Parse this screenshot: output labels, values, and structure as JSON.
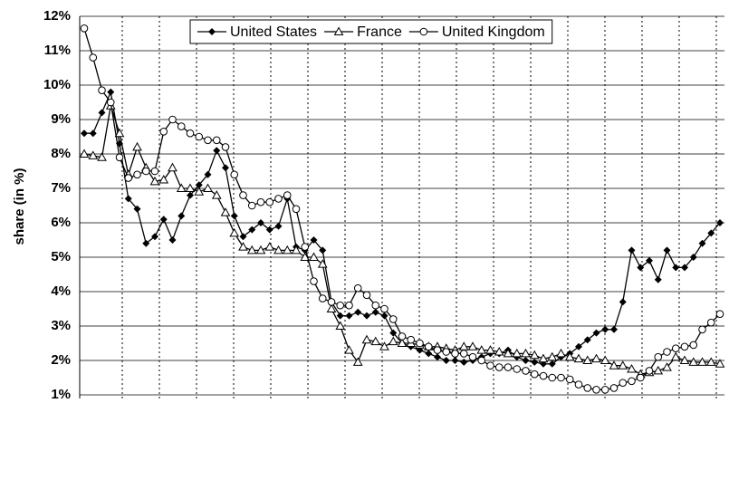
{
  "chart_data": {
    "type": "line",
    "y_label": "share (in %)",
    "ylim": [
      1,
      12
    ],
    "yticks": [
      {
        "value": 1,
        "label": "1%"
      },
      {
        "value": 2,
        "label": "2%"
      },
      {
        "value": 3,
        "label": "3%"
      },
      {
        "value": 4,
        "label": "4%"
      },
      {
        "value": 5,
        "label": "5%"
      },
      {
        "value": 6,
        "label": "6%"
      },
      {
        "value": 7,
        "label": "7%"
      },
      {
        "value": 8,
        "label": "8%"
      },
      {
        "value": 9,
        "label": "9%"
      },
      {
        "value": 10,
        "label": "10%"
      },
      {
        "value": 11,
        "label": "11%"
      },
      {
        "value": 12,
        "label": "12%"
      }
    ],
    "grid": true,
    "legend": "top",
    "series": [
      {
        "name": "United States",
        "color": "#000000",
        "marker": "diamond",
        "values": [
          8.6,
          8.6,
          9.2,
          9.8,
          8.3,
          6.7,
          6.4,
          5.4,
          5.6,
          6.1,
          5.5,
          6.2,
          6.8,
          7.1,
          7.4,
          8.1,
          7.6,
          6.2,
          5.6,
          5.8,
          6.0,
          5.8,
          5.9,
          6.7,
          5.3,
          5.2,
          5.5,
          5.2,
          3.7,
          3.3,
          3.3,
          3.4,
          3.3,
          3.4,
          3.3,
          2.8,
          2.5,
          2.4,
          2.3,
          2.2,
          2.1,
          2.0,
          2.0,
          1.95,
          2.0,
          2.1,
          2.2,
          2.2,
          2.3,
          2.1,
          2.0,
          1.95,
          1.9,
          1.9,
          2.1,
          2.2,
          2.4,
          2.6,
          2.8,
          2.9,
          2.9,
          3.7,
          5.2,
          4.7,
          4.9,
          4.35,
          5.2,
          4.7,
          4.7,
          5.0,
          5.4,
          5.7,
          6.0
        ]
      },
      {
        "name": "France",
        "color": "#000000",
        "marker": "triangle",
        "values": [
          8.0,
          7.95,
          7.9,
          9.4,
          8.6,
          7.4,
          8.2,
          7.6,
          7.2,
          7.25,
          7.6,
          7.0,
          7.0,
          6.9,
          7.0,
          6.8,
          6.3,
          5.7,
          5.3,
          5.2,
          5.2,
          5.3,
          5.2,
          5.2,
          5.2,
          5.0,
          5.0,
          4.8,
          3.5,
          3.0,
          2.3,
          1.95,
          2.6,
          2.55,
          2.4,
          2.55,
          2.5,
          2.5,
          2.45,
          2.4,
          2.4,
          2.35,
          2.3,
          2.4,
          2.4,
          2.3,
          2.3,
          2.25,
          2.2,
          2.2,
          2.2,
          2.15,
          2.05,
          2.1,
          2.2,
          2.1,
          2.05,
          2.0,
          2.05,
          2.0,
          1.85,
          1.85,
          1.75,
          1.6,
          1.65,
          1.7,
          1.8,
          2.1,
          2.0,
          1.95,
          1.95,
          1.95,
          1.9
        ]
      },
      {
        "name": "United Kingdom",
        "color": "#000000",
        "marker": "circle",
        "values": [
          11.65,
          10.8,
          9.85,
          9.5,
          7.9,
          7.3,
          7.4,
          7.5,
          7.5,
          8.65,
          9.0,
          8.8,
          8.6,
          8.5,
          8.4,
          8.4,
          8.2,
          7.4,
          6.8,
          6.5,
          6.6,
          6.6,
          6.7,
          6.8,
          6.4,
          5.3,
          4.3,
          3.8,
          3.7,
          3.6,
          3.6,
          4.1,
          3.9,
          3.6,
          3.5,
          3.2,
          2.7,
          2.6,
          2.5,
          2.4,
          2.3,
          2.25,
          2.2,
          2.2,
          2.1,
          2.0,
          1.85,
          1.8,
          1.8,
          1.75,
          1.7,
          1.6,
          1.55,
          1.5,
          1.5,
          1.45,
          1.3,
          1.2,
          1.15,
          1.15,
          1.2,
          1.35,
          1.4,
          1.5,
          1.7,
          2.1,
          2.25,
          2.35,
          2.4,
          2.45,
          2.9,
          3.1,
          3.35
        ]
      }
    ]
  }
}
